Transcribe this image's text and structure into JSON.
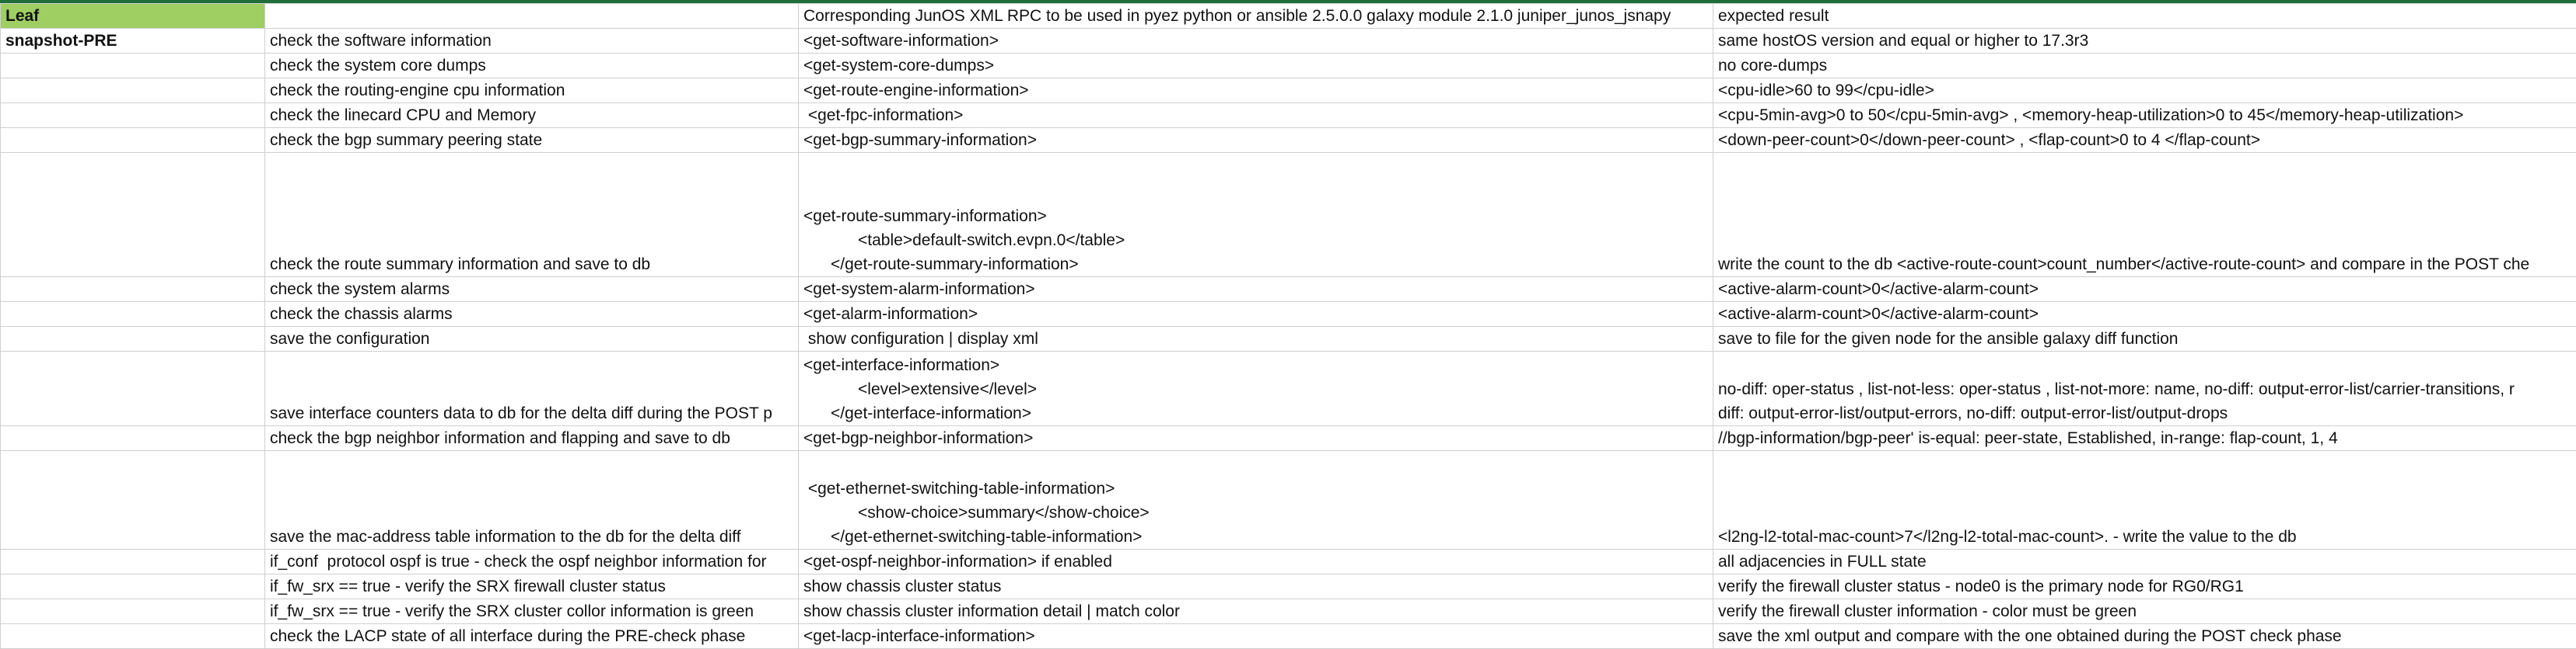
{
  "header": {
    "col1": "Leaf",
    "col2": "",
    "col3": "Corresponding JunOS XML RPC  to be used in pyez python or ansible 2.5.0.0 galaxy module 2.1.0  juniper_junos_jsnapy",
    "col4": "expected result"
  },
  "rows": [
    {
      "phase": "snapshot-PRE",
      "check": "check the software information",
      "rpc": "<get-software-information>",
      "expected": "same hostOS version and equal or higher to 17.3r3"
    },
    {
      "phase": "",
      "check": "check the system core dumps",
      "rpc": "<get-system-core-dumps>",
      "expected": "no core-dumps"
    },
    {
      "phase": "",
      "check": "check the routing-engine cpu information",
      "rpc": "<get-route-engine-information>",
      "expected": "<cpu-idle>60 to 99</cpu-idle>"
    },
    {
      "phase": "",
      "check": "check the linecard CPU and Memory",
      "rpc": " <get-fpc-information>",
      "expected": "<cpu-5min-avg>0 to 50</cpu-5min-avg> , <memory-heap-utilization>0 to 45</memory-heap-utilization>"
    },
    {
      "phase": "",
      "check": "check the bgp summary peering state",
      "rpc": "<get-bgp-summary-information>",
      "expected": "<down-peer-count>0</down-peer-count> , <flap-count>0 to 4 </flap-count>"
    },
    {
      "phase": "",
      "check": "check the route summary information and save to db",
      "rpc": "<get-route-summary-information>\n            <table>default-switch.evpn.0</table>\n      </get-route-summary-information>",
      "expected": "write the count to the db <active-route-count>count_number</active-route-count> and compare in the POST che"
    },
    {
      "phase": "",
      "check": "check the system alarms",
      "rpc": "<get-system-alarm-information>",
      "expected": "<active-alarm-count>0</active-alarm-count>"
    },
    {
      "phase": "",
      "check": "check the chassis alarms",
      "rpc": "<get-alarm-information>",
      "expected": "<active-alarm-count>0</active-alarm-count>"
    },
    {
      "phase": "",
      "check": "save the configuration",
      "rpc": " show configuration | display xml",
      "expected": "save to file for the given node for the ansible galaxy diff function"
    },
    {
      "phase": "",
      "check": "save interface counters data to db for the delta diff during the POST p",
      "rpc": "<get-interface-information>\n            <level>extensive</level>\n      </get-interface-information>",
      "expected": "no-diff: oper-status , list-not-less: oper-status , list-not-more: name, no-diff: output-error-list/carrier-transitions, r\ndiff: output-error-list/output-errors, no-diff: output-error-list/output-drops"
    },
    {
      "phase": "",
      "check": "check the bgp neighbor information and flapping and save to db",
      "rpc": "<get-bgp-neighbor-information>",
      "expected": "//bgp-information/bgp-peer' is-equal: peer-state, Established, in-range: flap-count, 1, 4"
    },
    {
      "phase": "",
      "check": "save the mac-address table information to the db for the delta diff",
      "rpc": " <get-ethernet-switching-table-information>\n            <show-choice>summary</show-choice>\n      </get-ethernet-switching-table-information>",
      "expected": "<l2ng-l2-total-mac-count>7</l2ng-l2-total-mac-count>. - write the value to the db"
    },
    {
      "phase": "",
      "check": "if_conf  protocol ospf is true - check the ospf neighbor information for",
      "rpc": "<get-ospf-neighbor-information> if enabled",
      "expected": "all adjacencies in FULL state"
    },
    {
      "phase": "",
      "check": "if_fw_srx == true - verify the SRX firewall cluster status",
      "rpc": "show chassis cluster status",
      "expected": "verify the firewall cluster status - node0 is the primary node for RG0/RG1"
    },
    {
      "phase": "",
      "check": "if_fw_srx == true - verify the SRX cluster collor information is green",
      "rpc": "show chassis cluster information detail | match color",
      "expected": "verify the firewall cluster information - color must be green"
    },
    {
      "phase": "",
      "check": "check the LACP state of all interface during the PRE-check phase",
      "rpc": "<get-lacp-interface-information>",
      "expected": "save the xml output and compare with the one obtained during the POST check phase"
    }
  ]
}
